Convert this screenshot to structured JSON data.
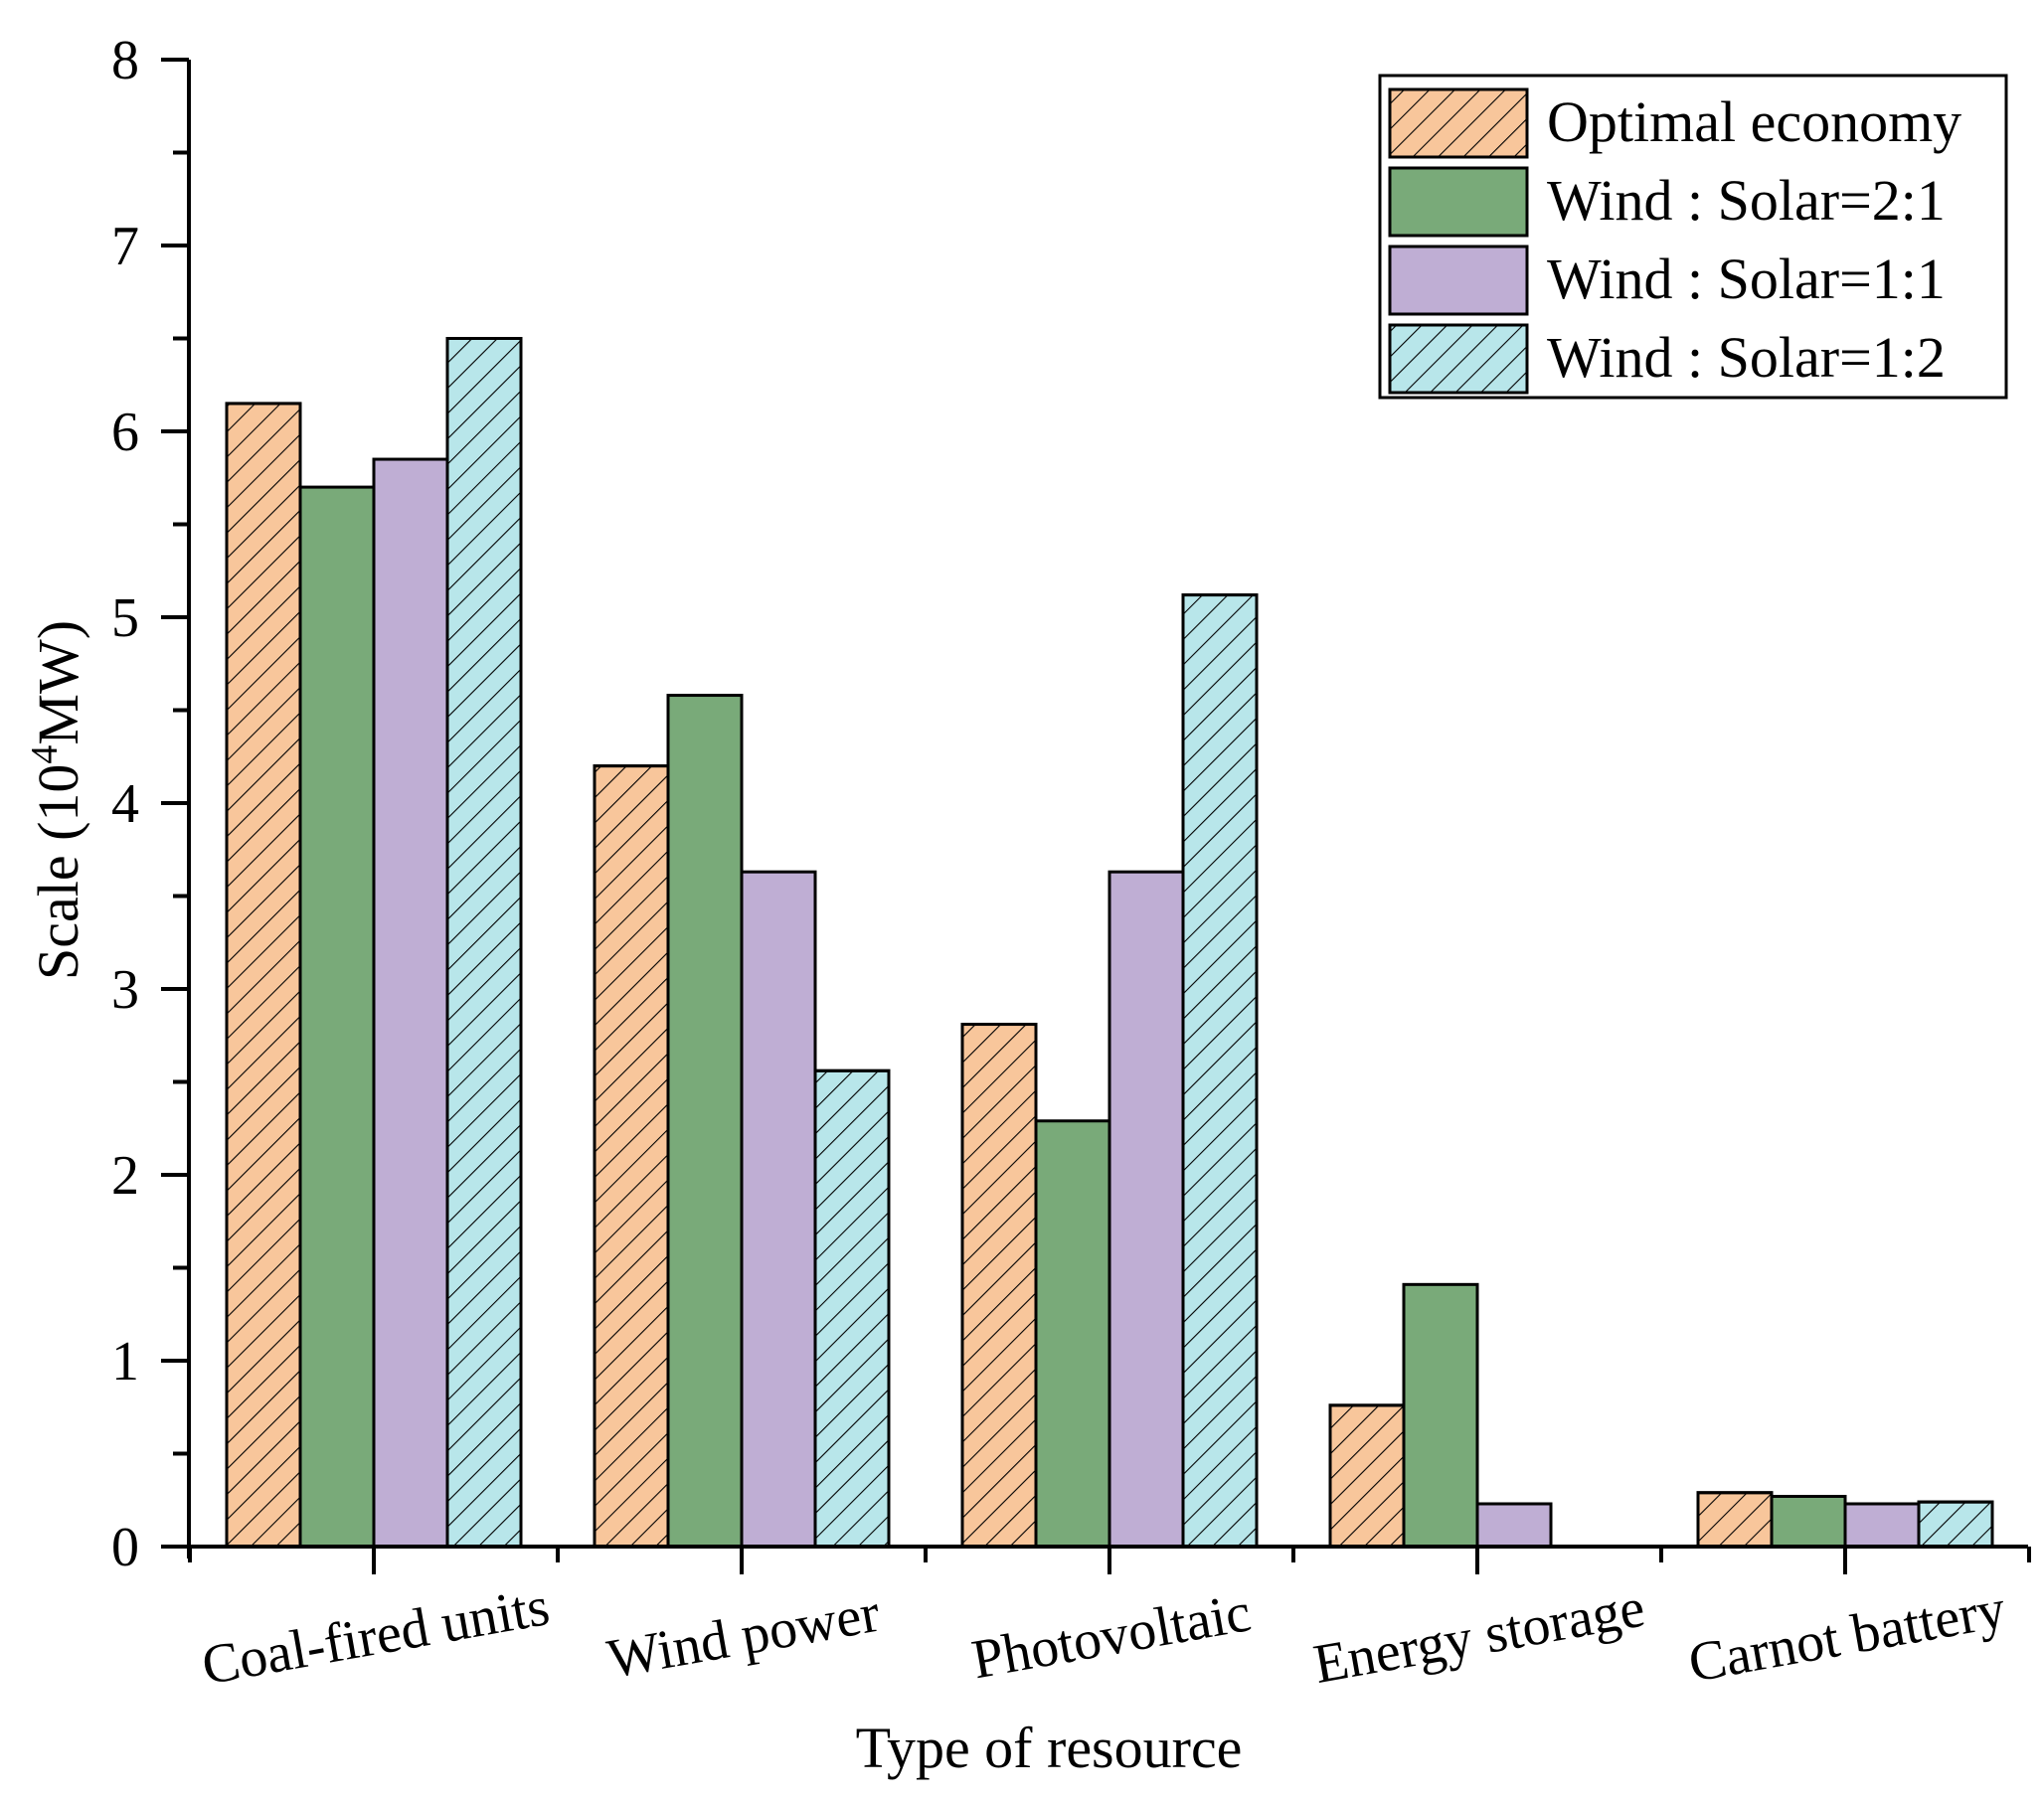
{
  "chart_data": {
    "type": "bar",
    "title": "",
    "xlabel": "Type of resource",
    "ylabel": "Scale (10",
    "ylabel_sup": "4",
    "ylabel_unit": "MW)",
    "ylim": [
      0,
      8
    ],
    "yticks": [
      "0",
      "1",
      "2",
      "3",
      "4",
      "5",
      "6",
      "7",
      "8"
    ],
    "categories": [
      "Coal-fired units",
      "Wind power",
      "Photovoltaic",
      "Energy storage",
      "Carnot battery"
    ],
    "series": [
      {
        "name": "Optimal economy",
        "color": "#f8c69b",
        "hatch": true,
        "values": [
          6.15,
          4.2,
          2.81,
          0.76,
          0.29
        ]
      },
      {
        "name": "Wind : Solar=2:1",
        "color": "#79aa79",
        "hatch": false,
        "values": [
          5.7,
          4.58,
          2.29,
          1.41,
          0.27
        ]
      },
      {
        "name": "Wind : Solar=1:1",
        "color": "#bfaed4",
        "hatch": false,
        "values": [
          5.85,
          3.63,
          3.63,
          0.23,
          0.23
        ]
      },
      {
        "name": "Wind : Solar=1:2",
        "color": "#b8e6ea",
        "hatch": true,
        "values": [
          6.5,
          2.56,
          5.12,
          0,
          0.24
        ]
      }
    ],
    "legend_position": "top-right",
    "grid": false
  }
}
